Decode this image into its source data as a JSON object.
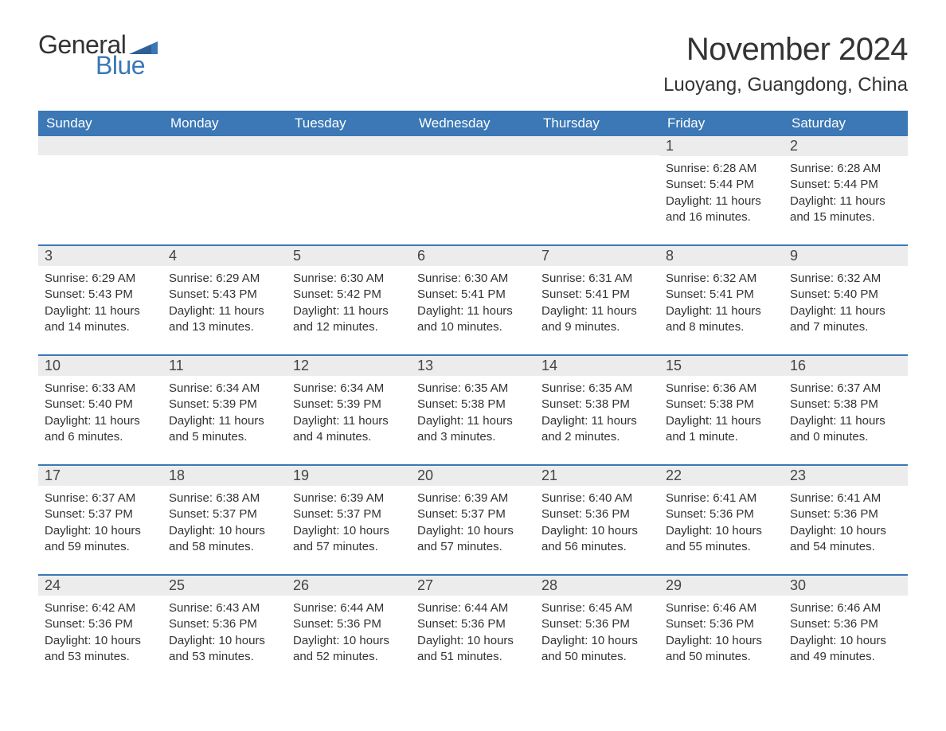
{
  "logo": {
    "text_general": "General",
    "text_blue": "Blue",
    "flag_color": "#3b78b5"
  },
  "title": "November 2024",
  "location": "Luoyang, Guangdong, China",
  "colors": {
    "header_bg": "#3b78b5",
    "header_text": "#ffffff",
    "daynum_bg": "#ececec",
    "row_border": "#3b78b5",
    "body_text": "#333333",
    "page_bg": "#ffffff"
  },
  "fonts": {
    "title_size": 40,
    "location_size": 24,
    "dayhead_size": 17,
    "daynum_size": 18,
    "body_size": 15
  },
  "day_headers": [
    "Sunday",
    "Monday",
    "Tuesday",
    "Wednesday",
    "Thursday",
    "Friday",
    "Saturday"
  ],
  "weeks": [
    [
      {
        "num": "",
        "sunrise": "",
        "sunset": "",
        "daylight": ""
      },
      {
        "num": "",
        "sunrise": "",
        "sunset": "",
        "daylight": ""
      },
      {
        "num": "",
        "sunrise": "",
        "sunset": "",
        "daylight": ""
      },
      {
        "num": "",
        "sunrise": "",
        "sunset": "",
        "daylight": ""
      },
      {
        "num": "",
        "sunrise": "",
        "sunset": "",
        "daylight": ""
      },
      {
        "num": "1",
        "sunrise": "Sunrise: 6:28 AM",
        "sunset": "Sunset: 5:44 PM",
        "daylight": "Daylight: 11 hours and 16 minutes."
      },
      {
        "num": "2",
        "sunrise": "Sunrise: 6:28 AM",
        "sunset": "Sunset: 5:44 PM",
        "daylight": "Daylight: 11 hours and 15 minutes."
      }
    ],
    [
      {
        "num": "3",
        "sunrise": "Sunrise: 6:29 AM",
        "sunset": "Sunset: 5:43 PM",
        "daylight": "Daylight: 11 hours and 14 minutes."
      },
      {
        "num": "4",
        "sunrise": "Sunrise: 6:29 AM",
        "sunset": "Sunset: 5:43 PM",
        "daylight": "Daylight: 11 hours and 13 minutes."
      },
      {
        "num": "5",
        "sunrise": "Sunrise: 6:30 AM",
        "sunset": "Sunset: 5:42 PM",
        "daylight": "Daylight: 11 hours and 12 minutes."
      },
      {
        "num": "6",
        "sunrise": "Sunrise: 6:30 AM",
        "sunset": "Sunset: 5:41 PM",
        "daylight": "Daylight: 11 hours and 10 minutes."
      },
      {
        "num": "7",
        "sunrise": "Sunrise: 6:31 AM",
        "sunset": "Sunset: 5:41 PM",
        "daylight": "Daylight: 11 hours and 9 minutes."
      },
      {
        "num": "8",
        "sunrise": "Sunrise: 6:32 AM",
        "sunset": "Sunset: 5:41 PM",
        "daylight": "Daylight: 11 hours and 8 minutes."
      },
      {
        "num": "9",
        "sunrise": "Sunrise: 6:32 AM",
        "sunset": "Sunset: 5:40 PM",
        "daylight": "Daylight: 11 hours and 7 minutes."
      }
    ],
    [
      {
        "num": "10",
        "sunrise": "Sunrise: 6:33 AM",
        "sunset": "Sunset: 5:40 PM",
        "daylight": "Daylight: 11 hours and 6 minutes."
      },
      {
        "num": "11",
        "sunrise": "Sunrise: 6:34 AM",
        "sunset": "Sunset: 5:39 PM",
        "daylight": "Daylight: 11 hours and 5 minutes."
      },
      {
        "num": "12",
        "sunrise": "Sunrise: 6:34 AM",
        "sunset": "Sunset: 5:39 PM",
        "daylight": "Daylight: 11 hours and 4 minutes."
      },
      {
        "num": "13",
        "sunrise": "Sunrise: 6:35 AM",
        "sunset": "Sunset: 5:38 PM",
        "daylight": "Daylight: 11 hours and 3 minutes."
      },
      {
        "num": "14",
        "sunrise": "Sunrise: 6:35 AM",
        "sunset": "Sunset: 5:38 PM",
        "daylight": "Daylight: 11 hours and 2 minutes."
      },
      {
        "num": "15",
        "sunrise": "Sunrise: 6:36 AM",
        "sunset": "Sunset: 5:38 PM",
        "daylight": "Daylight: 11 hours and 1 minute."
      },
      {
        "num": "16",
        "sunrise": "Sunrise: 6:37 AM",
        "sunset": "Sunset: 5:38 PM",
        "daylight": "Daylight: 11 hours and 0 minutes."
      }
    ],
    [
      {
        "num": "17",
        "sunrise": "Sunrise: 6:37 AM",
        "sunset": "Sunset: 5:37 PM",
        "daylight": "Daylight: 10 hours and 59 minutes."
      },
      {
        "num": "18",
        "sunrise": "Sunrise: 6:38 AM",
        "sunset": "Sunset: 5:37 PM",
        "daylight": "Daylight: 10 hours and 58 minutes."
      },
      {
        "num": "19",
        "sunrise": "Sunrise: 6:39 AM",
        "sunset": "Sunset: 5:37 PM",
        "daylight": "Daylight: 10 hours and 57 minutes."
      },
      {
        "num": "20",
        "sunrise": "Sunrise: 6:39 AM",
        "sunset": "Sunset: 5:37 PM",
        "daylight": "Daylight: 10 hours and 57 minutes."
      },
      {
        "num": "21",
        "sunrise": "Sunrise: 6:40 AM",
        "sunset": "Sunset: 5:36 PM",
        "daylight": "Daylight: 10 hours and 56 minutes."
      },
      {
        "num": "22",
        "sunrise": "Sunrise: 6:41 AM",
        "sunset": "Sunset: 5:36 PM",
        "daylight": "Daylight: 10 hours and 55 minutes."
      },
      {
        "num": "23",
        "sunrise": "Sunrise: 6:41 AM",
        "sunset": "Sunset: 5:36 PM",
        "daylight": "Daylight: 10 hours and 54 minutes."
      }
    ],
    [
      {
        "num": "24",
        "sunrise": "Sunrise: 6:42 AM",
        "sunset": "Sunset: 5:36 PM",
        "daylight": "Daylight: 10 hours and 53 minutes."
      },
      {
        "num": "25",
        "sunrise": "Sunrise: 6:43 AM",
        "sunset": "Sunset: 5:36 PM",
        "daylight": "Daylight: 10 hours and 53 minutes."
      },
      {
        "num": "26",
        "sunrise": "Sunrise: 6:44 AM",
        "sunset": "Sunset: 5:36 PM",
        "daylight": "Daylight: 10 hours and 52 minutes."
      },
      {
        "num": "27",
        "sunrise": "Sunrise: 6:44 AM",
        "sunset": "Sunset: 5:36 PM",
        "daylight": "Daylight: 10 hours and 51 minutes."
      },
      {
        "num": "28",
        "sunrise": "Sunrise: 6:45 AM",
        "sunset": "Sunset: 5:36 PM",
        "daylight": "Daylight: 10 hours and 50 minutes."
      },
      {
        "num": "29",
        "sunrise": "Sunrise: 6:46 AM",
        "sunset": "Sunset: 5:36 PM",
        "daylight": "Daylight: 10 hours and 50 minutes."
      },
      {
        "num": "30",
        "sunrise": "Sunrise: 6:46 AM",
        "sunset": "Sunset: 5:36 PM",
        "daylight": "Daylight: 10 hours and 49 minutes."
      }
    ]
  ]
}
